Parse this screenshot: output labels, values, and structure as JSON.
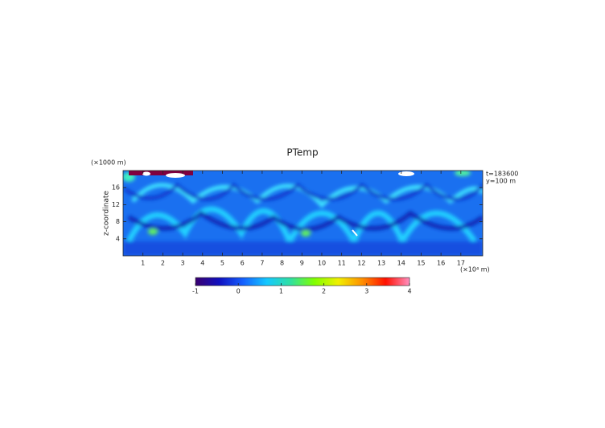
{
  "chart_data": {
    "type": "heatmap",
    "title": "PTemp",
    "y_label": "z-coordinate",
    "y_unit": "(×1000 m)",
    "x_unit": "(×10⁴ m)",
    "annotations": [
      "t=183600",
      "y=100 m"
    ],
    "xlim": [
      0,
      18.1
    ],
    "xticks": [
      1,
      2,
      3,
      4,
      5,
      6,
      7,
      8,
      9,
      10,
      11,
      12,
      13,
      14,
      15,
      16,
      17
    ],
    "ylim": [
      0,
      20
    ],
    "yticks": [
      4,
      8,
      12,
      16
    ],
    "colorbar": {
      "lim": [
        -1,
        4
      ],
      "ticks": [
        -1,
        0,
        1,
        2,
        3,
        4
      ],
      "colors": [
        "#3a0070",
        "#1010c0",
        "#1560ff",
        "#14c8ff",
        "#30e0a0",
        "#80ff00",
        "#f0f000",
        "#ff9000",
        "#ff1000",
        "#ff90c0"
      ]
    }
  }
}
